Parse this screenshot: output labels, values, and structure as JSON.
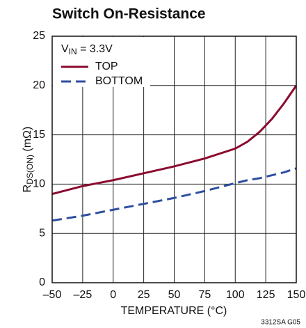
{
  "chart_data": {
    "type": "line",
    "title": "Switch On-Resistance",
    "y_label": [
      "R",
      "DS(ON)",
      " (mΩ)"
    ],
    "x_label": "TEMPERATURE (°C)",
    "annotation": [
      "V",
      "IN",
      " = 3.3V"
    ],
    "footnote": "3312SA G05",
    "x": [
      -50,
      -25,
      0,
      25,
      50,
      75,
      100,
      110,
      120,
      130,
      140,
      150
    ],
    "series": [
      {
        "name": "TOP",
        "color": "#8b0a2e",
        "dash": false,
        "values": [
          9,
          9.8,
          10.4,
          11.1,
          11.8,
          12.6,
          13.6,
          14.3,
          15.3,
          16.6,
          18.2,
          20
        ]
      },
      {
        "name": "BOTTOM",
        "color": "#2e4f9e",
        "dash": true,
        "values": [
          6.3,
          6.8,
          7.4,
          8,
          8.6,
          9.3,
          10.1,
          10.4,
          10.6,
          10.9,
          11.2,
          11.6
        ]
      }
    ],
    "xlim": [
      -50,
      150
    ],
    "xticks": [
      {
        "value": -50,
        "label": "–50"
      },
      {
        "value": -25,
        "label": "–25"
      },
      0,
      25,
      50,
      75,
      100,
      125,
      150
    ],
    "ylim": [
      0,
      25
    ],
    "yticks": [
      0,
      5,
      10,
      15,
      20,
      25
    ],
    "grid": true
  }
}
